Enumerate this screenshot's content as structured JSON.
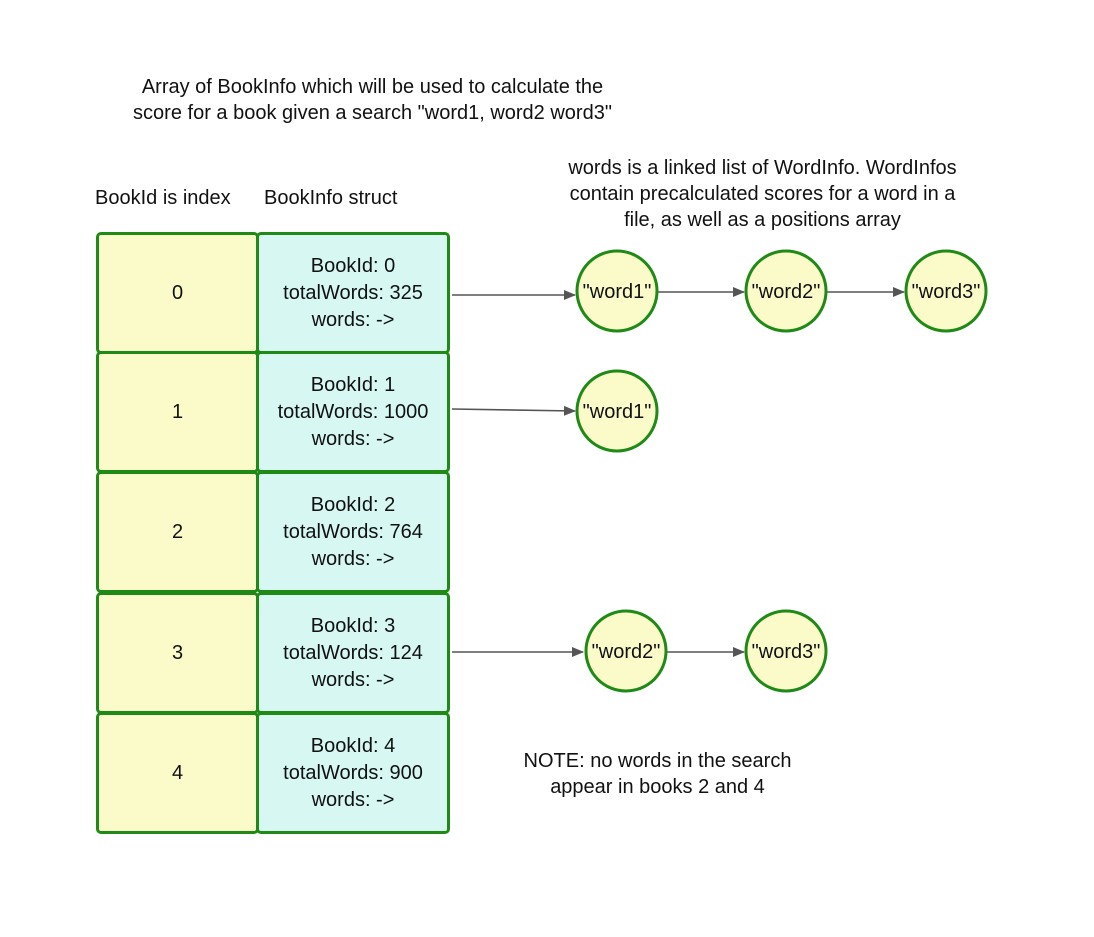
{
  "title": {
    "line1": "Array of BookInfo which will be used to calculate the",
    "line2": "score for a book given a search \"word1, word2 word3\""
  },
  "headers": {
    "index": "BookId is index",
    "struct": "BookInfo struct"
  },
  "words_description": {
    "line1": "words is a linked list of WordInfo. WordInfos",
    "line2": "contain precalculated scores for a word in a",
    "line3": "file, as well as a positions array"
  },
  "books": [
    {
      "index": "0",
      "bookid": "BookId: 0",
      "total": "totalWords: 325",
      "words": "words: ->"
    },
    {
      "index": "1",
      "bookid": "BookId: 1",
      "total": "totalWords: 1000",
      "words": "words: ->"
    },
    {
      "index": "2",
      "bookid": "BookId: 2",
      "total": "totalWords: 764",
      "words": "words: ->"
    },
    {
      "index": "3",
      "bookid": "BookId: 3",
      "total": "totalWords: 124",
      "words": "words: ->"
    },
    {
      "index": "4",
      "bookid": "BookId: 4",
      "total": "totalWords: 900",
      "words": "words: ->"
    }
  ],
  "linked_lists": {
    "book0": [
      "\"word1\"",
      "\"word2\"",
      "\"word3\""
    ],
    "book1": [
      "\"word1\""
    ],
    "book3": [
      "\"word2\"",
      "\"word3\""
    ]
  },
  "note": {
    "line1": "NOTE: no words in the search",
    "line2": "appear in books 2 and 4"
  },
  "colors": {
    "border_green": "#1f8a16",
    "index_fill": "#fafbc8",
    "info_fill": "#d6f7f2",
    "node_fill": "#fafbc8",
    "arrow": "#555555"
  }
}
